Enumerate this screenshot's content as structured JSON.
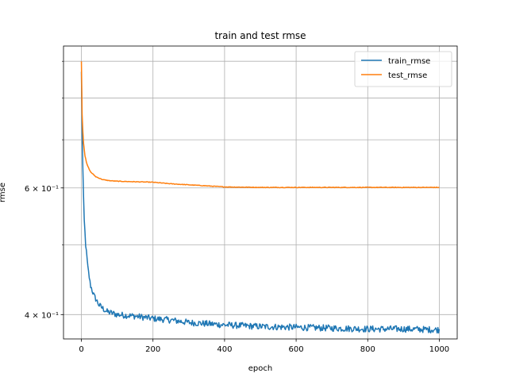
{
  "chart_data": {
    "type": "line",
    "title": "train and test rmse",
    "xlabel": "epoch",
    "ylabel": "rmse",
    "yscale": "log",
    "xlim": [
      -50,
      1050
    ],
    "ylim": [
      0.37,
      0.945
    ],
    "grid": true,
    "legend": "top-right",
    "x_ticks": [
      0,
      200,
      400,
      600,
      800,
      1000
    ],
    "x_tick_labels": [
      "0",
      "200",
      "400",
      "600",
      "800",
      "1000"
    ],
    "y_major_ticks": [
      0.4,
      0.6
    ],
    "y_major_labels": [
      "4 × 10⁻¹",
      "6 × 10⁻¹"
    ],
    "y_minor_ticks": [
      0.5,
      0.7,
      0.8,
      0.9
    ],
    "series": [
      {
        "name": "train_rmse",
        "color": "#1f77b4",
        "noise": 0.004,
        "points": [
          [
            0,
            0.87
          ],
          [
            2,
            0.72
          ],
          [
            5,
            0.6
          ],
          [
            8,
            0.54
          ],
          [
            12,
            0.5
          ],
          [
            18,
            0.465
          ],
          [
            25,
            0.44
          ],
          [
            35,
            0.425
          ],
          [
            50,
            0.412
          ],
          [
            70,
            0.404
          ],
          [
            100,
            0.4
          ],
          [
            150,
            0.398
          ],
          [
            200,
            0.395
          ],
          [
            250,
            0.393
          ],
          [
            300,
            0.39
          ],
          [
            400,
            0.387
          ],
          [
            500,
            0.385
          ],
          [
            600,
            0.384
          ],
          [
            700,
            0.383
          ],
          [
            800,
            0.382
          ],
          [
            900,
            0.382
          ],
          [
            1000,
            0.381
          ]
        ]
      },
      {
        "name": "test_rmse",
        "color": "#ff7f0e",
        "noise": 0.0006,
        "points": [
          [
            0,
            0.9
          ],
          [
            2,
            0.76
          ],
          [
            5,
            0.7
          ],
          [
            10,
            0.665
          ],
          [
            15,
            0.648
          ],
          [
            25,
            0.632
          ],
          [
            40,
            0.622
          ],
          [
            60,
            0.616
          ],
          [
            80,
            0.614
          ],
          [
            100,
            0.613
          ],
          [
            150,
            0.612
          ],
          [
            200,
            0.611
          ],
          [
            250,
            0.608
          ],
          [
            300,
            0.606
          ],
          [
            400,
            0.602
          ],
          [
            500,
            0.601
          ],
          [
            600,
            0.601
          ],
          [
            700,
            0.601
          ],
          [
            800,
            0.601
          ],
          [
            900,
            0.601
          ],
          [
            1000,
            0.601
          ]
        ]
      }
    ]
  }
}
